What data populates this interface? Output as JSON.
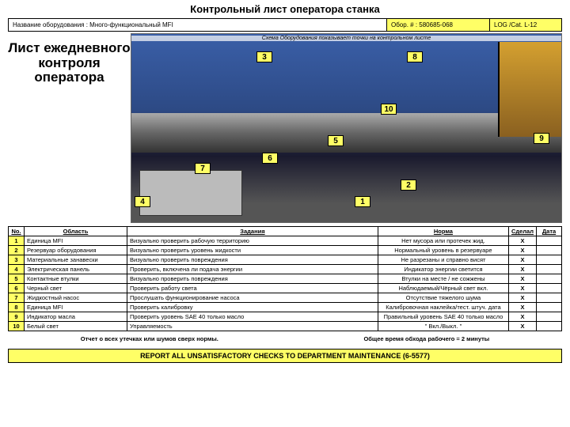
{
  "title": "Контрольный лист оператора станка",
  "header": {
    "equip_label": "Название оборудования : Много-функциональный MFI",
    "equip_num": "Обор. # : 580685-068",
    "log": "LOG /Cat. L-12"
  },
  "left_heading": "Лист ежедневного контроля оператора",
  "diagram_subtitle": "Схема Оборудования показывает точки на контрольном листе",
  "tags": [
    "1",
    "2",
    "3",
    "4",
    "5",
    "6",
    "7",
    "8",
    "9",
    "10"
  ],
  "columns": {
    "num": "No.",
    "area": "Область",
    "task": "Задания",
    "norm": "Норма",
    "check": "Сделал",
    "date": "Дата"
  },
  "rows": [
    {
      "n": "1",
      "area": "Единица MFI",
      "task": "Визуально проверить рабочую территорию",
      "norm": "Нет мусора или протечек жид.",
      "c": "X"
    },
    {
      "n": "2",
      "area": "Резервуар оборудования",
      "task": "Визуально проверить уровень жидкости",
      "norm": "Нормальный уровень в резервуаре",
      "c": "X"
    },
    {
      "n": "3",
      "area": "Материальные занавески",
      "task": "Визуально проверить повреждения",
      "norm": "Не разрезаны и справно висят",
      "c": "X"
    },
    {
      "n": "4",
      "area": "Электрическая панель",
      "task": "Проверить, включена ли подача энергии",
      "norm": "Индикатор энергии светится",
      "c": "X"
    },
    {
      "n": "5",
      "area": "Контактные втулки",
      "task": "Визуально проверить повреждения",
      "norm": "Втулки на месте / не сожжены",
      "c": "X"
    },
    {
      "n": "6",
      "area": "Черный свет",
      "task": "Проверить работу света",
      "norm": "Наблюдаемый/Чёрный свет вкл.",
      "c": "X"
    },
    {
      "n": "7",
      "area": "Жидкостный насос",
      "task": "Прослушать функционирование насоса",
      "norm": "Отсутствие тяжелого шума",
      "c": "X"
    },
    {
      "n": "8",
      "area": "Единица MFI",
      "task": "Проверить калибровку",
      "norm": "Калибровочная наклейка/тест. штуч. дата",
      "c": "X"
    },
    {
      "n": "9",
      "area": "Индикатор масла",
      "task": "Проверить уровень                   SAE 40 только масло",
      "norm": "Правильный уровень      SAE 40 только масло",
      "c": "X"
    },
    {
      "n": "10",
      "area": "Белый свет",
      "task": "Управляемость",
      "norm": "\" Вкл./Выкл. \"",
      "c": "X"
    }
  ],
  "footer": {
    "left": "Отчет о всех утечках или шумов сверх нормы.",
    "right": "Общее время обхода рабочего = 2 минуты"
  },
  "report": "REPORT ALL UNSATISFACTORY CHECKS TO DEPARTMENT MAINTENANCE (6-5577)"
}
